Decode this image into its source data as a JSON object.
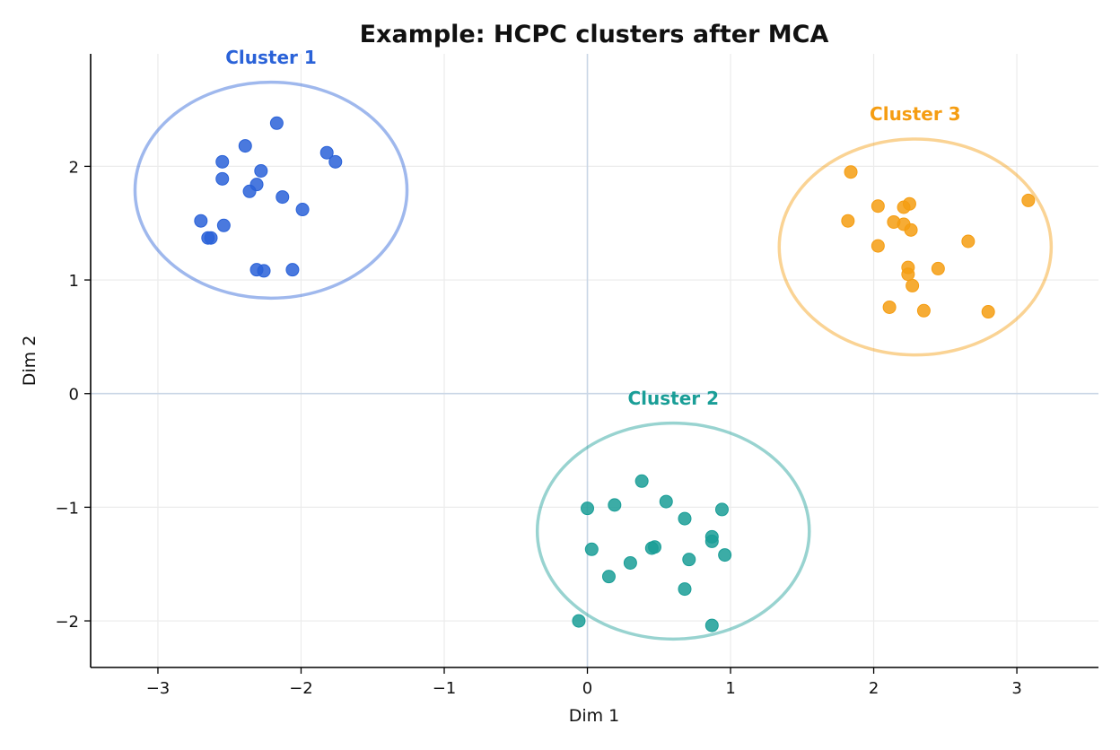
{
  "chart_data": {
    "type": "scatter",
    "title": "Example: HCPC clusters after MCA",
    "xlabel": "Dim 1",
    "ylabel": "Dim 2",
    "xlim": [
      -3.47,
      3.57
    ],
    "ylim": [
      -2.41,
      2.99
    ],
    "xticks": [
      -3,
      -2,
      -1,
      0,
      1,
      2,
      3
    ],
    "yticks": [
      -2,
      -1,
      0,
      1,
      2
    ],
    "xtick_labels": [
      "−3",
      "−2",
      "−1",
      "0",
      "1",
      "2",
      "3"
    ],
    "ytick_labels": [
      "−2",
      "−1",
      "0",
      "1",
      "2"
    ],
    "grid": true,
    "reference_lines": {
      "x": 0,
      "y": 0,
      "color": "#c9d6e6"
    },
    "series": [
      {
        "name": "Cluster 1",
        "color": "#2a62d8",
        "label_position": [
          -2.21,
          2.96
        ],
        "ellipse": {
          "center": [
            -2.21,
            1.79
          ],
          "radius_x": 0.95,
          "radius_y": 0.95
        },
        "points": [
          [
            -2.17,
            2.38
          ],
          [
            -2.39,
            2.18
          ],
          [
            -2.55,
            2.04
          ],
          [
            -2.28,
            1.96
          ],
          [
            -2.55,
            1.89
          ],
          [
            -2.31,
            1.84
          ],
          [
            -2.36,
            1.78
          ],
          [
            -2.13,
            1.73
          ],
          [
            -1.82,
            2.12
          ],
          [
            -1.76,
            2.04
          ],
          [
            -1.99,
            1.62
          ],
          [
            -2.7,
            1.52
          ],
          [
            -2.54,
            1.48
          ],
          [
            -2.65,
            1.37
          ],
          [
            -2.63,
            1.37
          ],
          [
            -2.31,
            1.09
          ],
          [
            -2.26,
            1.08
          ],
          [
            -2.06,
            1.09
          ]
        ]
      },
      {
        "name": "Cluster 2",
        "color": "#1a9e97",
        "label_position": [
          0.6,
          -0.04
        ],
        "ellipse": {
          "center": [
            0.6,
            -1.21
          ],
          "radius_x": 0.95,
          "radius_y": 0.95
        },
        "points": [
          [
            0.38,
            -0.77
          ],
          [
            0.0,
            -1.01
          ],
          [
            0.19,
            -0.98
          ],
          [
            0.55,
            -0.95
          ],
          [
            0.68,
            -1.1
          ],
          [
            0.94,
            -1.02
          ],
          [
            0.87,
            -1.26
          ],
          [
            0.87,
            -1.3
          ],
          [
            0.96,
            -1.42
          ],
          [
            0.03,
            -1.37
          ],
          [
            0.45,
            -1.36
          ],
          [
            0.47,
            -1.35
          ],
          [
            0.71,
            -1.46
          ],
          [
            0.3,
            -1.49
          ],
          [
            0.15,
            -1.61
          ],
          [
            0.68,
            -1.72
          ],
          [
            -0.06,
            -2.0
          ],
          [
            0.87,
            -2.04
          ]
        ]
      },
      {
        "name": "Cluster 3",
        "color": "#f59d12",
        "label_position": [
          2.29,
          2.46
        ],
        "ellipse": {
          "center": [
            2.29,
            1.29
          ],
          "radius_x": 0.95,
          "radius_y": 0.95
        },
        "points": [
          [
            1.84,
            1.95
          ],
          [
            2.03,
            1.65
          ],
          [
            2.25,
            1.67
          ],
          [
            2.21,
            1.64
          ],
          [
            1.82,
            1.52
          ],
          [
            2.14,
            1.51
          ],
          [
            2.21,
            1.49
          ],
          [
            2.26,
            1.44
          ],
          [
            2.66,
            1.34
          ],
          [
            3.08,
            1.7
          ],
          [
            2.03,
            1.3
          ],
          [
            2.24,
            1.11
          ],
          [
            2.24,
            1.05
          ],
          [
            2.45,
            1.1
          ],
          [
            2.27,
            0.95
          ],
          [
            2.11,
            0.76
          ],
          [
            2.35,
            0.73
          ],
          [
            2.8,
            0.72
          ]
        ]
      }
    ]
  }
}
